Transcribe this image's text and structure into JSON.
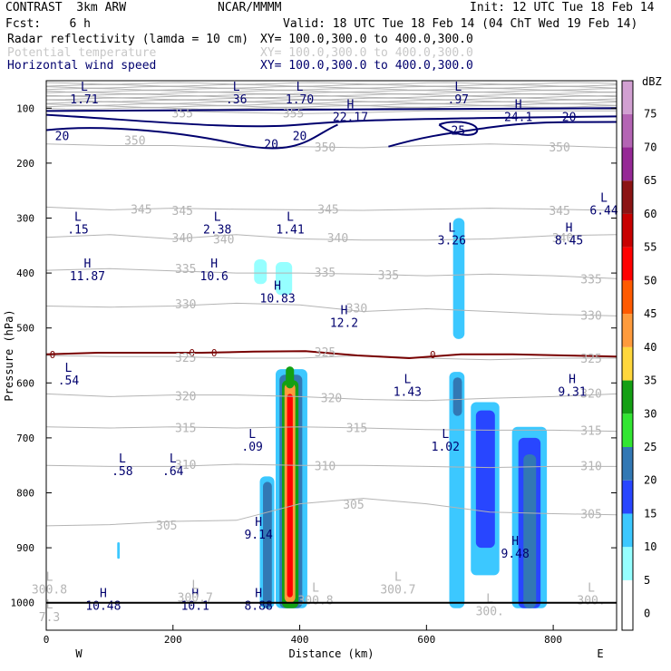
{
  "header": {
    "model": "CONTRAST  3km ARW",
    "org": "NCAR/MMMM",
    "init": "Init: 12 UTC Tue 18 Feb 14",
    "fcst": "Fcst:    6 h",
    "valid": "Valid: 18 UTC Tue 18 Feb 14 (04 ChT Wed 19 Feb 14)"
  },
  "fields": [
    {
      "label": "Radar reflectivity (lamda = 10 cm)",
      "xy": "XY= 100.0,300.0 to 400.0,300.0",
      "color": "#000000"
    },
    {
      "label": "Potential temperature",
      "xy": "XY= 100.0,300.0 to 400.0,300.0",
      "color": "#c8c8c8"
    },
    {
      "label": "Horizontal wind speed",
      "xy": "XY= 100.0,300.0 to 400.0,300.0",
      "color": "#00006e"
    }
  ],
  "chart_data": {
    "type": "cross-section contour",
    "xlabel": "Distance (km)",
    "ylabel": "Pressure (hPa)",
    "xlim": [
      0,
      900
    ],
    "ylim": [
      1050,
      50
    ],
    "xticks": [
      0,
      200,
      400,
      600,
      800
    ],
    "xtick_labels": [
      "0",
      "200",
      "400",
      "600",
      "800"
    ],
    "yticks": [
      100,
      200,
      300,
      400,
      500,
      600,
      700,
      800,
      900,
      1000
    ],
    "ytick_labels": [
      "100",
      "200",
      "300",
      "400",
      "500",
      "600",
      "700",
      "800",
      "900",
      "1000"
    ],
    "west_label": "W",
    "east_label": "E",
    "colorbar": {
      "units": "dBZ",
      "levels": [
        "0",
        "5",
        "10",
        "15",
        "20",
        "25",
        "30",
        "35",
        "40",
        "45",
        "50",
        "55",
        "60",
        "65",
        "70",
        "75"
      ],
      "colors": [
        "#ffffff",
        "#96ffff",
        "#3cc8ff",
        "#2846ff",
        "#3278b4",
        "#32e632",
        "#14a014",
        "#ffd73c",
        "#ff9b3c",
        "#ff5a00",
        "#ff0000",
        "#c80000",
        "#8c1414",
        "#962896",
        "#b464b4",
        "#d2a0d2"
      ]
    },
    "theta_contours": [
      {
        "value": 355,
        "p": [
          105,
          105,
          105,
          108,
          110,
          108,
          105,
          105,
          105,
          105
        ]
      },
      {
        "value": 350,
        "p": [
          165,
          168,
          168,
          172,
          170,
          172,
          168,
          165,
          168,
          172
        ]
      },
      {
        "value": 345,
        "p": [
          280,
          285,
          282,
          284,
          285,
          286,
          284,
          282,
          284,
          286
        ]
      },
      {
        "value": 340,
        "p": [
          335,
          330,
          338,
          330,
          338,
          340,
          340,
          338,
          332,
          330
        ]
      },
      {
        "value": 335,
        "p": [
          395,
          392,
          396,
          400,
          400,
          402,
          405,
          402,
          405,
          410
        ]
      },
      {
        "value": 330,
        "p": [
          460,
          462,
          460,
          455,
          458,
          470,
          465,
          470,
          475,
          478
        ]
      },
      {
        "value": 325,
        "p": [
          550,
          552,
          552,
          555,
          555,
          550,
          555,
          558,
          555,
          555
        ]
      },
      {
        "value": 320,
        "p": [
          620,
          625,
          622,
          622,
          625,
          630,
          632,
          628,
          625,
          620
        ]
      },
      {
        "value": 315,
        "p": [
          680,
          682,
          680,
          682,
          680,
          682,
          685,
          686,
          686,
          688
        ]
      },
      {
        "value": 310,
        "p": [
          750,
          752,
          752,
          748,
          750,
          750,
          752,
          754,
          752,
          752
        ]
      },
      {
        "value": 305,
        "p": [
          860,
          858,
          852,
          850,
          820,
          810,
          820,
          835,
          838,
          840
        ]
      }
    ],
    "theta_labels": [
      {
        "text": "355",
        "x": 215,
        "p": 110
      },
      {
        "text": "355",
        "x": 390,
        "p": 110
      },
      {
        "text": "350",
        "x": 140,
        "p": 160
      },
      {
        "text": "350",
        "x": 440,
        "p": 172
      },
      {
        "text": "350",
        "x": 810,
        "p": 172
      },
      {
        "text": "345",
        "x": 150,
        "p": 285
      },
      {
        "text": "345",
        "x": 215,
        "p": 288
      },
      {
        "text": "345",
        "x": 445,
        "p": 285
      },
      {
        "text": "345",
        "x": 810,
        "p": 288
      },
      {
        "text": "340",
        "x": 215,
        "p": 337
      },
      {
        "text": "340",
        "x": 280,
        "p": 340
      },
      {
        "text": "340",
        "x": 460,
        "p": 337
      },
      {
        "text": "340",
        "x": 815,
        "p": 337
      },
      {
        "text": "335",
        "x": 220,
        "p": 393
      },
      {
        "text": "335",
        "x": 440,
        "p": 400
      },
      {
        "text": "335",
        "x": 540,
        "p": 405
      },
      {
        "text": "335",
        "x": 860,
        "p": 412
      },
      {
        "text": "330",
        "x": 220,
        "p": 458
      },
      {
        "text": "330",
        "x": 490,
        "p": 465
      },
      {
        "text": "330",
        "x": 860,
        "p": 478
      },
      {
        "text": "325",
        "x": 220,
        "p": 555
      },
      {
        "text": "325",
        "x": 440,
        "p": 545
      },
      {
        "text": "325",
        "x": 860,
        "p": 557
      },
      {
        "text": "320",
        "x": 220,
        "p": 625
      },
      {
        "text": "320",
        "x": 450,
        "p": 628
      },
      {
        "text": "320",
        "x": 860,
        "p": 620
      },
      {
        "text": "315",
        "x": 220,
        "p": 683
      },
      {
        "text": "315",
        "x": 490,
        "p": 683
      },
      {
        "text": "315",
        "x": 860,
        "p": 688
      },
      {
        "text": "310",
        "x": 220,
        "p": 750
      },
      {
        "text": "310",
        "x": 440,
        "p": 752
      },
      {
        "text": "310",
        "x": 860,
        "p": 752
      },
      {
        "text": "305",
        "x": 190,
        "p": 860
      },
      {
        "text": "305",
        "x": 485,
        "p": 822
      },
      {
        "text": "305",
        "x": 860,
        "p": 840
      }
    ],
    "zero_line_label": "0",
    "wind_label": "20",
    "wind_label2": "25",
    "annotations": [
      {
        "mark": "L",
        "value": "1.71",
        "x": 60,
        "p": 68
      },
      {
        "mark": "L",
        "value": ".36",
        "x": 300,
        "p": 68
      },
      {
        "mark": "L",
        "value": "1.70",
        "x": 400,
        "p": 68
      },
      {
        "mark": "H",
        "value": "22.17",
        "x": 480,
        "p": 100
      },
      {
        "mark": "L",
        "value": ".97",
        "x": 650,
        "p": 68
      },
      {
        "mark": "H",
        "value": "24.1",
        "x": 745,
        "p": 100
      },
      {
        "mark": "L",
        "value": "6.44",
        "x": 880,
        "p": 270
      },
      {
        "mark": "L",
        "value": ".15",
        "x": 50,
        "p": 305
      },
      {
        "mark": "L",
        "value": "2.38",
        "x": 270,
        "p": 305
      },
      {
        "mark": "L",
        "value": "1.41",
        "x": 385,
        "p": 305
      },
      {
        "mark": "L",
        "value": "3.26",
        "x": 640,
        "p": 325
      },
      {
        "mark": "H",
        "value": "8.45",
        "x": 825,
        "p": 325
      },
      {
        "mark": "H",
        "value": "11.87",
        "x": 65,
        "p": 390
      },
      {
        "mark": "H",
        "value": "10.6",
        "x": 265,
        "p": 390
      },
      {
        "mark": "H",
        "value": "10.83",
        "x": 365,
        "p": 430
      },
      {
        "mark": "H",
        "value": "12.2",
        "x": 470,
        "p": 475
      },
      {
        "mark": "L",
        "value": ".54",
        "x": 35,
        "p": 580
      },
      {
        "mark": "L",
        "value": "1.43",
        "x": 570,
        "p": 600
      },
      {
        "mark": "H",
        "value": "9.31",
        "x": 830,
        "p": 600
      },
      {
        "mark": "L",
        "value": ".09",
        "x": 325,
        "p": 700
      },
      {
        "mark": "L",
        "value": "1.02",
        "x": 630,
        "p": 700
      },
      {
        "mark": "L",
        "value": ".58",
        "x": 120,
        "p": 745
      },
      {
        "mark": "L",
        "value": ".64",
        "x": 200,
        "p": 745
      },
      {
        "mark": "H",
        "value": "9.14",
        "x": 335,
        "p": 860
      },
      {
        "mark": "H",
        "value": "9.48",
        "x": 740,
        "p": 895
      },
      {
        "mark": "H",
        "value": "10.48",
        "x": 90,
        "p": 990
      },
      {
        "mark": "H",
        "value": "10.1",
        "x": 235,
        "p": 990
      },
      {
        "mark": "H",
        "value": "8.88",
        "x": 335,
        "p": 990
      },
      {
        "mark": "L",
        "value": "300.8",
        "x": 5,
        "p": 960
      },
      {
        "mark": "L",
        "value": "300.7",
        "x": 235,
        "p": 975
      },
      {
        "mark": "L",
        "value": "300.8",
        "x": 425,
        "p": 980
      },
      {
        "mark": "L",
        "value": "300.7",
        "x": 555,
        "p": 960
      },
      {
        "mark": "L",
        "value": "300.",
        "x": 700,
        "p": 1000
      },
      {
        "mark": "L",
        "value": "300.",
        "x": 860,
        "p": 980
      },
      {
        "mark": "L",
        "value": "7.3",
        "x": 5,
        "p": 1010
      }
    ],
    "reflectivity_cells": [
      {
        "x": [
          337,
          360
        ],
        "p": [
          770,
          1010
        ],
        "dbz": 10
      },
      {
        "x": [
          342,
          356
        ],
        "p": [
          780,
          1010
        ],
        "dbz": 20
      },
      {
        "x": [
          362,
          412
        ],
        "p": [
          575,
          1010
        ],
        "dbz": 10
      },
      {
        "x": [
          368,
          404
        ],
        "p": [
          585,
          1010
        ],
        "dbz": 20
      },
      {
        "x": [
          372,
          398
        ],
        "p": [
          595,
          1010
        ],
        "dbz": 30
      },
      {
        "x": [
          376,
          393
        ],
        "p": [
          600,
          1000
        ],
        "dbz": 40
      },
      {
        "x": [
          380,
          389
        ],
        "p": [
          620,
          990
        ],
        "dbz": 50
      },
      {
        "x": [
          378,
          391
        ],
        "p": [
          570,
          610
        ],
        "dbz": 30
      },
      {
        "x": [
          328,
          348
        ],
        "p": [
          375,
          420
        ],
        "dbz": 5
      },
      {
        "x": [
          362,
          388
        ],
        "p": [
          380,
          440
        ],
        "dbz": 5
      },
      {
        "x": [
          642,
          660
        ],
        "p": [
          300,
          520
        ],
        "dbz": 10
      },
      {
        "x": [
          636,
          660
        ],
        "p": [
          580,
          1010
        ],
        "dbz": 10
      },
      {
        "x": [
          642,
          656
        ],
        "p": [
          590,
          660
        ],
        "dbz": 20
      },
      {
        "x": [
          670,
          715
        ],
        "p": [
          635,
          950
        ],
        "dbz": 10
      },
      {
        "x": [
          678,
          708
        ],
        "p": [
          650,
          900
        ],
        "dbz": 15
      },
      {
        "x": [
          735,
          790
        ],
        "p": [
          680,
          1010
        ],
        "dbz": 10
      },
      {
        "x": [
          745,
          780
        ],
        "p": [
          700,
          1010
        ],
        "dbz": 15
      },
      {
        "x": [
          753,
          773
        ],
        "p": [
          730,
          1010
        ],
        "dbz": 20
      },
      {
        "x": [
          112,
          116
        ],
        "p": [
          890,
          920
        ],
        "dbz": 10
      }
    ]
  }
}
